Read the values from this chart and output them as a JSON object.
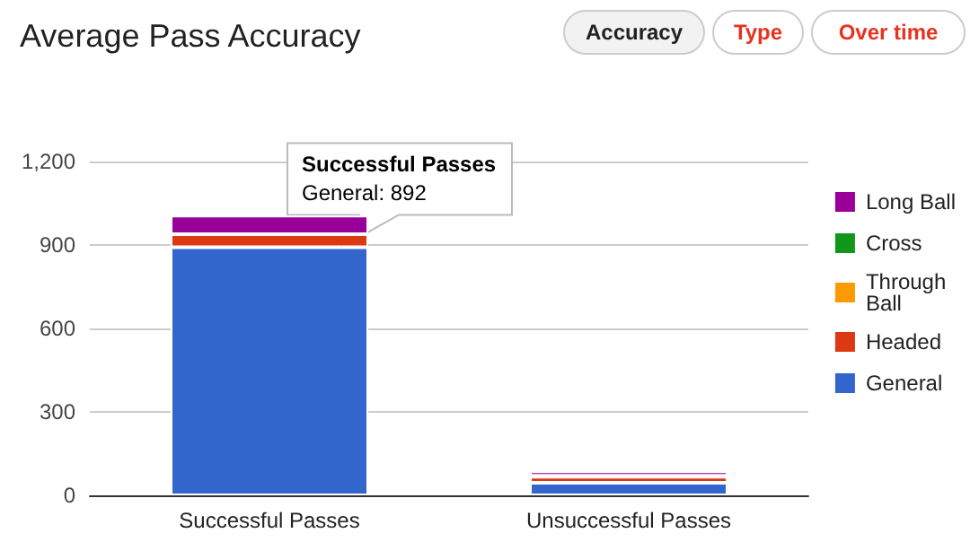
{
  "chart_data": {
    "type": "bar",
    "title": "Average Pass Accuracy",
    "categories": [
      "Successful Passes",
      "Unsuccessful Passes"
    ],
    "stacked": true,
    "series": [
      {
        "name": "General",
        "color": "#3366cc",
        "values": [
          892,
          45
        ]
      },
      {
        "name": "Headed",
        "color": "#dc3912",
        "values": [
          47,
          22
        ]
      },
      {
        "name": "Through Ball",
        "color": "#ff9900",
        "values": [
          0,
          3
        ]
      },
      {
        "name": "Cross",
        "color": "#109618",
        "values": [
          0,
          0
        ]
      },
      {
        "name": "Long Ball",
        "color": "#990099",
        "values": [
          67,
          16
        ]
      }
    ],
    "ylim": [
      0,
      1200
    ],
    "yticks": [
      0,
      300,
      600,
      900,
      {
        "value": 1200,
        "label": "1,200"
      }
    ],
    "grid": "y",
    "legend": "right",
    "annotations": [
      "Accuracy",
      "Type",
      "Over time",
      {
        "text": "Successful Passes\nGeneral: 892",
        "x": "Successful Passes",
        "y": 892
      }
    ]
  }
}
